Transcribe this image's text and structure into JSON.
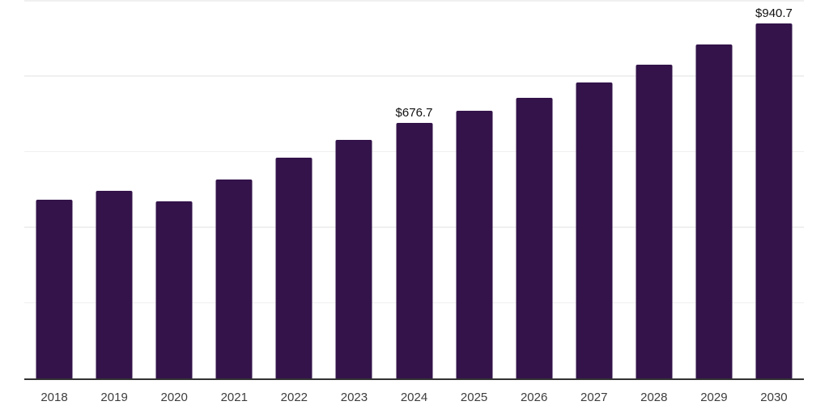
{
  "chart": {
    "background": "#ffffff",
    "bar_color": "#33134a",
    "axis_line_color": "#333333",
    "gridline_color": "#f0f0f0",
    "tick_label_color": "#3d3d3d",
    "data_label_color": "#111111"
  },
  "chart_data": {
    "type": "bar",
    "title": "",
    "xlabel": "",
    "ylabel": "",
    "categories": [
      "2018",
      "2019",
      "2020",
      "2021",
      "2022",
      "2023",
      "2024",
      "2025",
      "2026",
      "2027",
      "2028",
      "2029",
      "2030"
    ],
    "values": [
      474,
      496,
      468,
      527,
      585,
      632,
      676.7,
      709,
      743,
      784,
      831,
      884,
      940.7
    ],
    "data_labels": [
      {
        "category": "2024",
        "text": "$676.7"
      },
      {
        "category": "2030",
        "text": "$940.7"
      }
    ],
    "ylim": [
      0,
      1000
    ],
    "gridline_values": [
      200,
      400,
      600,
      800,
      1000
    ],
    "grid": true,
    "legend": false
  }
}
